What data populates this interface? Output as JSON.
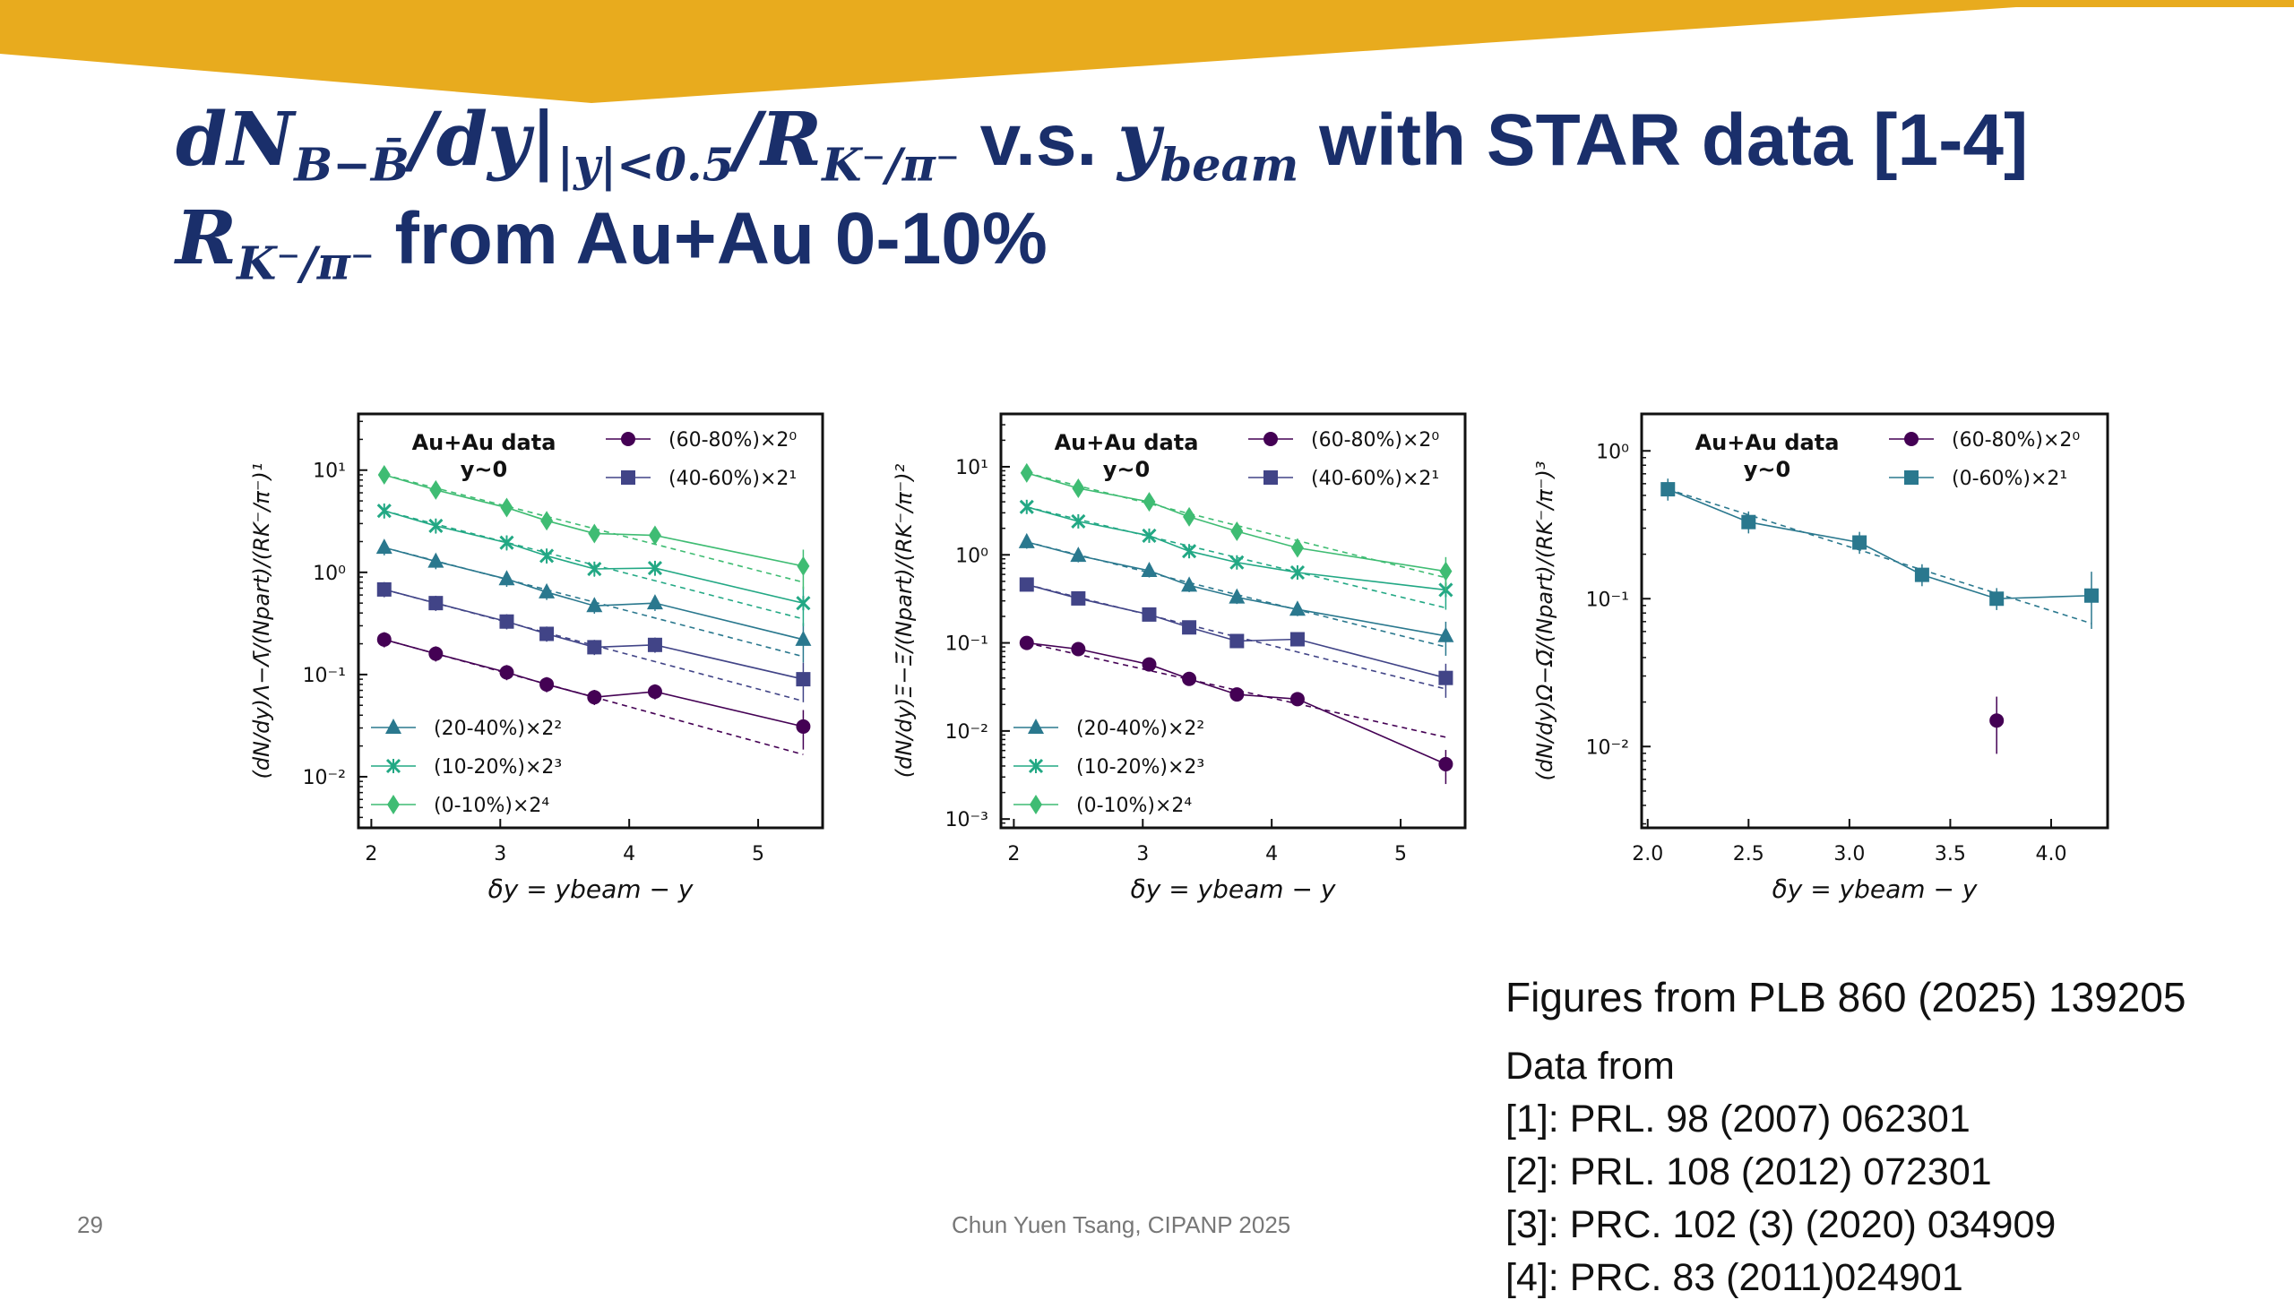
{
  "slide": {
    "title_line1": {
      "math_a": "dN",
      "sub_a": "B−B̄",
      "math_b": "/dy|",
      "sub_b": "|y|<0.5",
      "math_c": "/R",
      "sub_c": "K⁻/π⁻",
      "text_vs": " v.s. ",
      "math_d": "y",
      "sub_d": "beam",
      "text_end": " with STAR data [1-4]"
    },
    "title_line2": {
      "math_a": "R",
      "sub_a": "K⁻/π⁻",
      "text_end": " from Au+Au 0-10%"
    },
    "figures_from": "Figures from PLB 860 (2025) 139205",
    "data_from": "Data from",
    "refs": [
      "[1]: PRL. 98 (2007) 062301",
      "[2]: PRL. 108 (2012) 072301",
      "[3]: PRC. 102 (3) (2020) 034909",
      "[4]: PRC. 83 (2011)024901"
    ],
    "page_number": "29",
    "footer": "Chun Yuen Tsang, CIPANP 2025",
    "colors": {
      "title": "#1a2f6b",
      "banner": "#e8ab1e"
    }
  },
  "chart_data": [
    {
      "type": "scatter",
      "title": "Au+Au data",
      "subtitle": "y~0",
      "ylabel": "(dN/dy)Λ−Λ̄/(Npart)/(RK⁻/π⁻)¹",
      "xlabel": "δy = ybeam − y",
      "xlim": [
        1.9,
        5.5
      ],
      "ylim_log10": [
        -2.5,
        1.55
      ],
      "yscale": "log",
      "xticks": [
        "2",
        "3",
        "4",
        "5"
      ],
      "yticks": [
        "10¹",
        "10⁰",
        "10⁻¹",
        "10⁻²"
      ],
      "yticks_exp": [
        1,
        0,
        -1,
        -2
      ],
      "series": [
        {
          "name": "(60-80%)×2⁰",
          "marker": "circle",
          "color": "#440154",
          "x": [
            2.1,
            2.5,
            3.05,
            3.36,
            3.73,
            4.2,
            5.35
          ],
          "y": [
            0.22,
            0.16,
            0.105,
            0.08,
            0.06,
            0.068,
            0.031
          ],
          "fit": [
            0.22,
            0.0165
          ]
        },
        {
          "name": "(40-60%)×2¹",
          "marker": "square",
          "color": "#414487",
          "x": [
            2.1,
            2.5,
            3.05,
            3.36,
            3.73,
            4.2,
            5.35
          ],
          "y": [
            0.68,
            0.5,
            0.33,
            0.25,
            0.185,
            0.195,
            0.09
          ],
          "fit": [
            0.68,
            0.055
          ]
        },
        {
          "name": "(20-40%)×2²",
          "marker": "triangle",
          "color": "#2a788e",
          "x": [
            2.1,
            2.5,
            3.05,
            3.36,
            3.73,
            4.2,
            5.35
          ],
          "y": [
            1.75,
            1.28,
            0.86,
            0.64,
            0.47,
            0.5,
            0.22
          ],
          "fit": [
            1.75,
            0.15
          ]
        },
        {
          "name": "(10-20%)×2³",
          "marker": "x",
          "color": "#22a884",
          "x": [
            2.1,
            2.5,
            3.05,
            3.36,
            3.73,
            4.2,
            5.35
          ],
          "y": [
            4.0,
            2.85,
            1.95,
            1.45,
            1.08,
            1.1,
            0.5
          ],
          "fit": [
            4.0,
            0.35
          ]
        },
        {
          "name": "(0-10%)×2⁴",
          "marker": "diamond",
          "color": "#3fbc73",
          "x": [
            2.1,
            2.5,
            3.05,
            3.36,
            3.73,
            4.2,
            5.35
          ],
          "y": [
            9.0,
            6.4,
            4.3,
            3.2,
            2.4,
            2.3,
            1.15
          ],
          "fit": [
            9.0,
            0.8
          ]
        }
      ],
      "legend_top": [
        0,
        1
      ],
      "legend_bottom": [
        2,
        3,
        4
      ]
    },
    {
      "type": "scatter",
      "title": "Au+Au data",
      "subtitle": "y~0",
      "ylabel": "(dN/dy)Ξ−Ξ̄/(Npart)/(RK⁻/π⁻)²",
      "xlabel": "δy = ybeam − y",
      "xlim": [
        1.9,
        5.5
      ],
      "ylim_log10": [
        -3.1,
        1.6
      ],
      "yscale": "log",
      "xticks": [
        "2",
        "3",
        "4",
        "5"
      ],
      "yticks": [
        "10¹",
        "10⁰",
        "10⁻¹",
        "10⁻²",
        "10⁻³"
      ],
      "yticks_exp": [
        1,
        0,
        -1,
        -2,
        -3
      ],
      "series": [
        {
          "name": "(60-80%)×2⁰",
          "marker": "circle",
          "color": "#440154",
          "x": [
            2.1,
            2.5,
            3.05,
            3.36,
            3.73,
            4.2,
            5.35
          ],
          "y": [
            0.1,
            0.085,
            0.057,
            0.039,
            0.026,
            0.023,
            0.0042
          ],
          "fit": [
            0.1,
            0.0085
          ]
        },
        {
          "name": "(40-60%)×2¹",
          "marker": "square",
          "color": "#414487",
          "x": [
            2.1,
            2.5,
            3.05,
            3.36,
            3.73,
            4.2,
            5.35
          ],
          "y": [
            0.46,
            0.32,
            0.21,
            0.15,
            0.105,
            0.11,
            0.04
          ],
          "fit": [
            0.46,
            0.03
          ]
        },
        {
          "name": "(20-40%)×2²",
          "marker": "triangle",
          "color": "#2a788e",
          "x": [
            2.1,
            2.5,
            3.05,
            3.36,
            3.73,
            4.2,
            5.35
          ],
          "y": [
            1.4,
            0.98,
            0.66,
            0.45,
            0.33,
            0.24,
            0.12
          ],
          "fit": [
            1.4,
            0.09
          ]
        },
        {
          "name": "(10-20%)×2³",
          "marker": "x",
          "color": "#22a884",
          "x": [
            2.1,
            2.5,
            3.05,
            3.36,
            3.73,
            4.2,
            5.35
          ],
          "y": [
            3.5,
            2.4,
            1.65,
            1.1,
            0.82,
            0.63,
            0.4
          ],
          "fit": [
            3.5,
            0.25
          ]
        },
        {
          "name": "(0-10%)×2⁴",
          "marker": "diamond",
          "color": "#3fbc73",
          "x": [
            2.1,
            2.5,
            3.05,
            3.36,
            3.73,
            4.2,
            5.35
          ],
          "y": [
            8.5,
            5.7,
            4.0,
            2.7,
            1.85,
            1.2,
            0.65
          ],
          "fit": [
            8.5,
            0.55
          ]
        }
      ],
      "legend_top": [
        0,
        1
      ],
      "legend_bottom": [
        2,
        3,
        4
      ]
    },
    {
      "type": "scatter",
      "title": "Au+Au data",
      "subtitle": "y~0",
      "ylabel": "(dN/dy)Ω−Ω̄/(Npart)/(RK⁻/π⁻)³",
      "xlabel": "δy = ybeam − y",
      "xlim": [
        1.97,
        4.28
      ],
      "ylim_log10": [
        -2.55,
        0.25
      ],
      "yscale": "log",
      "xticks": [
        "2.0",
        "2.5",
        "3.0",
        "3.5",
        "4.0"
      ],
      "xticks_val": [
        2.0,
        2.5,
        3.0,
        3.5,
        4.0
      ],
      "yticks": [
        "10⁰",
        "10⁻¹",
        "10⁻²"
      ],
      "yticks_exp": [
        0,
        -1,
        -2
      ],
      "series": [
        {
          "name": "(60-80%)×2⁰",
          "marker": "circle",
          "color": "#440154",
          "x": [
            3.73
          ],
          "y": [
            0.015
          ]
        },
        {
          "name": "(0-60%)×2¹",
          "marker": "square",
          "color": "#2a788e",
          "x": [
            2.1,
            2.5,
            3.05,
            3.36,
            3.73,
            4.2
          ],
          "y": [
            0.55,
            0.33,
            0.24,
            0.145,
            0.1,
            0.105
          ],
          "fit": [
            0.55,
            0.068
          ]
        }
      ],
      "legend_top": [
        0,
        1
      ],
      "legend_bottom": []
    }
  ]
}
